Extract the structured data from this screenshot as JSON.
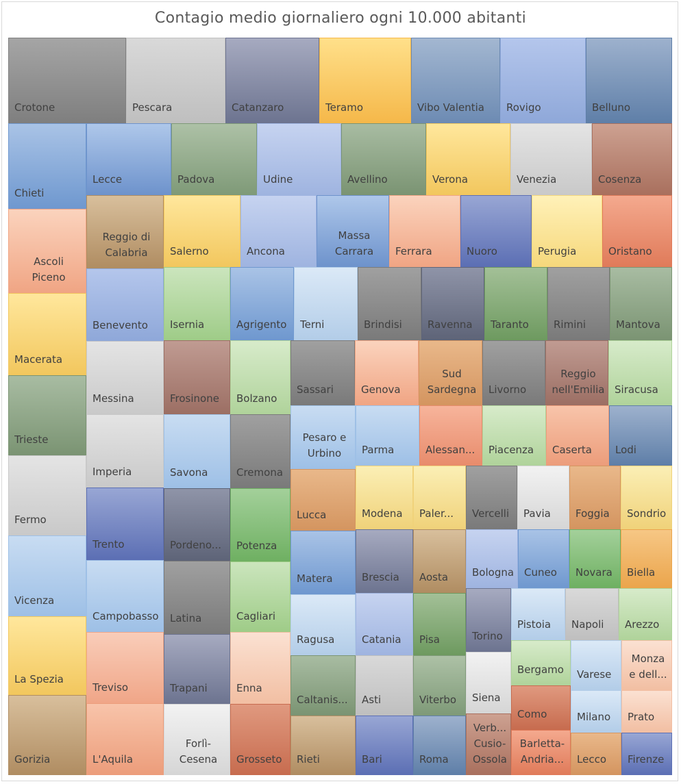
{
  "chart_data": {
    "type": "treemap",
    "title": "Contagio medio giornaliero ogni 10.000 abitanti",
    "palette": {
      "gray": [
        "#a5a5a5",
        "#7f7f7f"
      ],
      "lightgray": [
        "#d9d9d9",
        "#bfbfbf"
      ],
      "slate": [
        "#a6aac0",
        "#6d7490"
      ],
      "gold": [
        "#ffe08a",
        "#f5b84a"
      ],
      "steel": [
        "#a3b7d1",
        "#6d8bb3"
      ],
      "periwinkle": [
        "#b4c6ec",
        "#8fa8d9"
      ],
      "steeldark": [
        "#9db1cd",
        "#5f7fa8"
      ],
      "blue": [
        "#a9c3e6",
        "#6f98cf"
      ],
      "sage": [
        "#adc1a6",
        "#7f9a78"
      ],
      "lavender": [
        "#c6d3f0",
        "#9fb4e0"
      ],
      "yellow": [
        "#ffe79c",
        "#f2c75e"
      ],
      "silver": [
        "#e4e4e4",
        "#c9c9c9"
      ],
      "rust": [
        "#cda191",
        "#a9705e"
      ],
      "tan": [
        "#d8bf9c",
        "#b08d62"
      ],
      "blue2": [
        "#aec7ea",
        "#6e93cc"
      ],
      "peach": [
        "#fbd3bd",
        "#f0a584"
      ],
      "navyblue": [
        "#98a6d4",
        "#5c6fb4"
      ],
      "cream": [
        "#fff1b8",
        "#f6d87c"
      ],
      "salmon": [
        "#f4a98e",
        "#e07b5a"
      ],
      "mint": [
        "#cbe5bd",
        "#9fcc88"
      ],
      "icy": [
        "#dbe9f7",
        "#b3cde8"
      ],
      "darkgray": [
        "#a0a0a0",
        "#7a7a7a"
      ],
      "slate2": [
        "#8f94a8",
        "#5e6478"
      ],
      "green": [
        "#a3c097",
        "#6e9a60"
      ],
      "sage2": [
        "#a8bca2",
        "#7b9473"
      ],
      "ltgreen": [
        "#d7ebca",
        "#b0d39b"
      ],
      "ltblue": [
        "#c3d9f1",
        "#8fb4de"
      ],
      "orangesoft": [
        "#e9b88a",
        "#d49560"
      ],
      "mauve": [
        "#c09b92",
        "#9c6f64"
      ],
      "powder": [
        "#c8dcf2",
        "#9ec0e6"
      ],
      "coral": [
        "#f7b49b",
        "#e88c6c"
      ],
      "ivory": [
        "#fbefb5",
        "#f0d27a"
      ],
      "green2": [
        "#a3d09a",
        "#6fb062"
      ],
      "orange": [
        "#f6c785",
        "#eba54c"
      ],
      "white": [
        "#f2f2f2",
        "#d6d6d6"
      ],
      "bisque": [
        "#fbe1d2",
        "#f2bfa3"
      ],
      "blush": [
        "#f9cdb9",
        "#f0a688"
      ],
      "brick": [
        "#e0997f",
        "#c76c4f"
      ],
      "lightsalmon": [
        "#f8c4aa",
        "#ec9d7b"
      ]
    },
    "labels": [
      "Crotone",
      "Pescara",
      "Catanzaro",
      "Teramo",
      "Vibo Valentia",
      "Rovigo",
      "Belluno",
      "Chieti",
      "Lecce",
      "Padova",
      "Udine",
      "Avellino",
      "Verona",
      "Venezia",
      "Cosenza",
      "Reggio di\nCalabria",
      "Salerno",
      "Ancona",
      "Massa\nCarrara",
      "Ferrara",
      "Nuoro",
      "Perugia",
      "Oristano",
      "Ascoli\nPiceno",
      "Benevento",
      "Isernia",
      "Agrigento",
      "Terni",
      "Brindisi",
      "Ravenna",
      "Taranto",
      "Rimini",
      "Mantova",
      "Macerata",
      "Messina",
      "Frosinone",
      "Bolzano",
      "Sassari",
      "Genova",
      "Sud\nSardegna",
      "Livorno",
      "Reggio\nnell'Emilia",
      "Siracusa",
      "Trieste",
      "Pesaro e\nUrbino",
      "Parma",
      "Alessan...",
      "Piacenza",
      "Caserta",
      "Lodi",
      "Imperia",
      "Savona",
      "Cremona",
      "Fermo",
      "Lucca",
      "Modena",
      "Paler...",
      "Vercelli",
      "Pavia",
      "Foggia",
      "Sondrio",
      "Trento",
      "Pordeno...",
      "Potenza",
      "Matera",
      "Brescia",
      "Aosta",
      "Bologna",
      "Cuneo",
      "Novara",
      "Biella",
      "Vicenza",
      "Campobasso",
      "Latina",
      "Cagliari",
      "Ragusa",
      "Catania",
      "Pisa",
      "Torino",
      "Pistoia",
      "Napoli",
      "Arezzo",
      "La Spezia",
      "Treviso",
      "Trapani",
      "Enna",
      "Caltanis...",
      "Asti",
      "Viterbo",
      "Siena",
      "Bergamo",
      "Varese",
      "Monza\ne dell...",
      "Como",
      "Milano",
      "Prato",
      "Gorizia",
      "L'Aquila",
      "Forlì-\nCesena",
      "Grosseto",
      "Rieti",
      "Bari",
      "Roma",
      "Verb...\nCusio-\nOssola",
      "Barletta-\nAndria...",
      "Lecco",
      "Firenze"
    ]
  }
}
